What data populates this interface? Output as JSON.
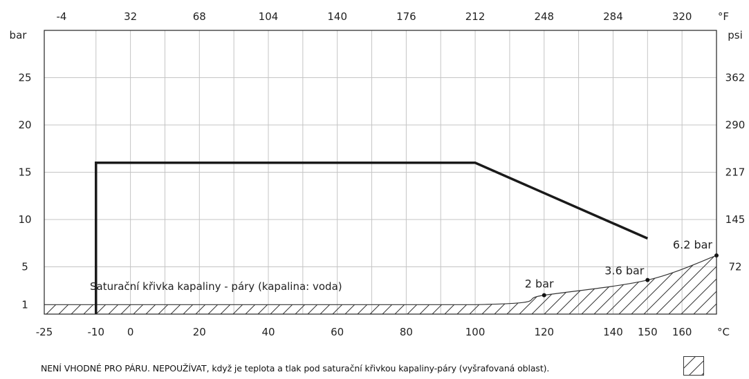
{
  "chart_data": {
    "type": "line",
    "x_bottom": {
      "unit": "°C",
      "ticks": [
        -25,
        -10,
        0,
        20,
        40,
        60,
        80,
        100,
        120,
        140,
        150,
        160
      ],
      "range": [
        -25,
        170
      ]
    },
    "x_top": {
      "unit": "°F",
      "ticks": [
        {
          "label": "-4",
          "c": -20
        },
        {
          "label": "32",
          "c": 0
        },
        {
          "label": "68",
          "c": 20
        },
        {
          "label": "104",
          "c": 40
        },
        {
          "label": "140",
          "c": 60
        },
        {
          "label": "176",
          "c": 80
        },
        {
          "label": "212",
          "c": 100
        },
        {
          "label": "248",
          "c": 120
        },
        {
          "label": "284",
          "c": 140
        },
        {
          "label": "320",
          "c": 160
        }
      ]
    },
    "y_left": {
      "unit": "bar",
      "ticks": [
        1,
        5,
        10,
        15,
        20,
        25
      ],
      "range": [
        0,
        30
      ]
    },
    "y_right": {
      "unit": "psi",
      "ticks": [
        {
          "label": "72",
          "bar": 5
        },
        {
          "label": "145",
          "bar": 10
        },
        {
          "label": "217",
          "bar": 15
        },
        {
          "label": "290",
          "bar": 20
        },
        {
          "label": "362",
          "bar": 25
        }
      ]
    },
    "grid_x": [
      -10,
      0,
      10,
      20,
      30,
      40,
      50,
      60,
      70,
      80,
      90,
      100,
      110,
      120,
      130,
      140,
      150,
      160
    ],
    "grid_y": [
      5,
      10,
      15,
      20,
      25
    ],
    "limit_series": {
      "points": [
        [
          -10,
          0
        ],
        [
          -10,
          16
        ],
        [
          100,
          16
        ],
        [
          150,
          8
        ]
      ]
    },
    "saturation_curve": {
      "label": "Saturační křivka kapaliny - páry (kapalina: voda)",
      "points": [
        [
          -25,
          1
        ],
        [
          100,
          1
        ],
        [
          120,
          2
        ],
        [
          150,
          3.6
        ],
        [
          170,
          6.2
        ]
      ],
      "labeled_points": [
        {
          "x": 120,
          "y": 2,
          "label": "2 bar"
        },
        {
          "x": 150,
          "y": 3.6,
          "label": "3.6 bar"
        },
        {
          "x": 170,
          "y": 6.2,
          "label": "6.2 bar"
        }
      ]
    }
  },
  "footer": {
    "note": "NENÍ VHODNÉ PRO PÁRU. NEPOUŽÍVAT, když je teplota a tlak pod saturační křivkou kapaliny-páry (vyšrafovaná oblast).",
    "legend_icon": "hatched-area-icon"
  }
}
